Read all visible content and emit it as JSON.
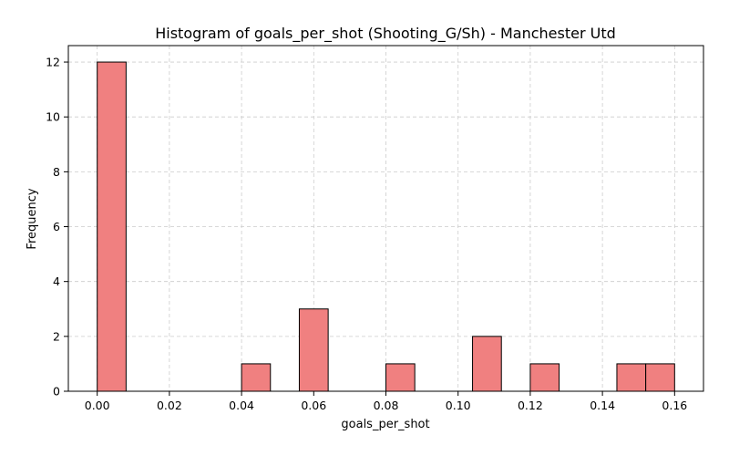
{
  "chart_data": {
    "type": "bar",
    "subtype": "histogram",
    "title": "Histogram of goals_per_shot (Shooting_G/Sh) - Manchester Utd",
    "xlabel": "goals_per_shot",
    "ylabel": "Frequency",
    "xlim": [
      -0.008,
      0.168
    ],
    "ylim": [
      0,
      12.6
    ],
    "xticks": [
      "0.00",
      "0.02",
      "0.04",
      "0.06",
      "0.08",
      "0.10",
      "0.12",
      "0.14",
      "0.16"
    ],
    "yticks": [
      "0",
      "2",
      "4",
      "6",
      "8",
      "10",
      "12"
    ],
    "grid": true,
    "bar_color": "#f08080",
    "bins": [
      {
        "x0": 0.0,
        "x1": 0.008,
        "count": 12
      },
      {
        "x0": 0.04,
        "x1": 0.048,
        "count": 1
      },
      {
        "x0": 0.056,
        "x1": 0.064,
        "count": 3
      },
      {
        "x0": 0.08,
        "x1": 0.088,
        "count": 1
      },
      {
        "x0": 0.104,
        "x1": 0.112,
        "count": 2
      },
      {
        "x0": 0.12,
        "x1": 0.128,
        "count": 1
      },
      {
        "x0": 0.144,
        "x1": 0.152,
        "count": 1
      },
      {
        "x0": 0.152,
        "x1": 0.16,
        "count": 1
      }
    ]
  }
}
